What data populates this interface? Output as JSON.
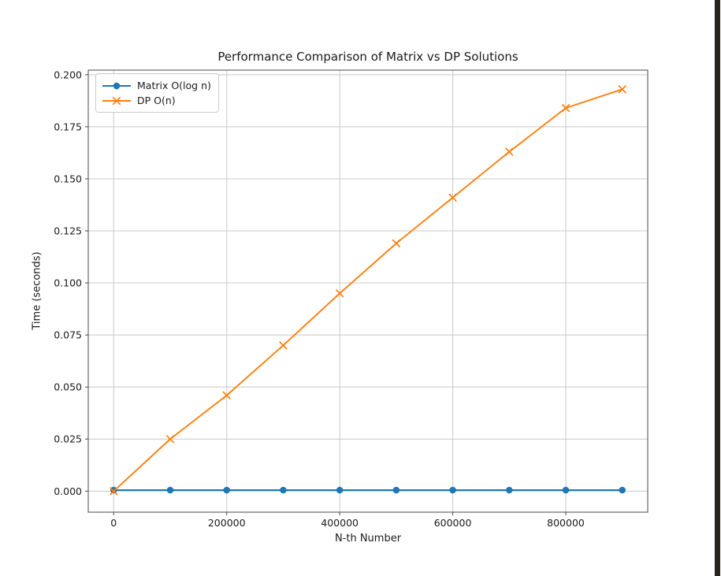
{
  "window": {
    "background_color": "#ffffff",
    "right_border_color": "#26261f"
  },
  "chart_data": {
    "type": "line",
    "title": "Performance Comparison of Matrix vs DP Solutions",
    "xlabel": "N-th Number",
    "ylabel": "Time (seconds)",
    "x": [
      0,
      100000,
      200000,
      300000,
      400000,
      500000,
      600000,
      700000,
      800000,
      900000
    ],
    "series": [
      {
        "name": "Matrix O(log n)",
        "color": "#1f77b4",
        "marker": "circle",
        "values": [
          0.0005,
          0.0005,
          0.0005,
          0.0005,
          0.0005,
          0.0005,
          0.0005,
          0.0005,
          0.0005,
          0.0005
        ]
      },
      {
        "name": "DP O(n)",
        "color": "#ff7f0e",
        "marker": "x",
        "values": [
          0.0,
          0.025,
          0.046,
          0.07,
          0.095,
          0.119,
          0.141,
          0.163,
          0.184,
          0.193
        ]
      }
    ],
    "x_ticks": [
      0,
      200000,
      400000,
      600000,
      800000
    ],
    "x_tick_labels": [
      "0",
      "200000",
      "400000",
      "600000",
      "800000"
    ],
    "y_ticks": [
      0.0,
      0.025,
      0.05,
      0.075,
      0.1,
      0.125,
      0.15,
      0.175,
      0.2
    ],
    "y_tick_labels": [
      "0.000",
      "0.025",
      "0.050",
      "0.075",
      "0.100",
      "0.125",
      "0.150",
      "0.175",
      "0.200"
    ],
    "xlim": [
      -45000,
      945000
    ],
    "ylim": [
      -0.0101,
      0.2022
    ],
    "grid": true,
    "grid_color": "#c8c8c8",
    "spine_color": "#4a4a4a",
    "text_color": "#1a1a1a",
    "legend_position": "upper left"
  }
}
